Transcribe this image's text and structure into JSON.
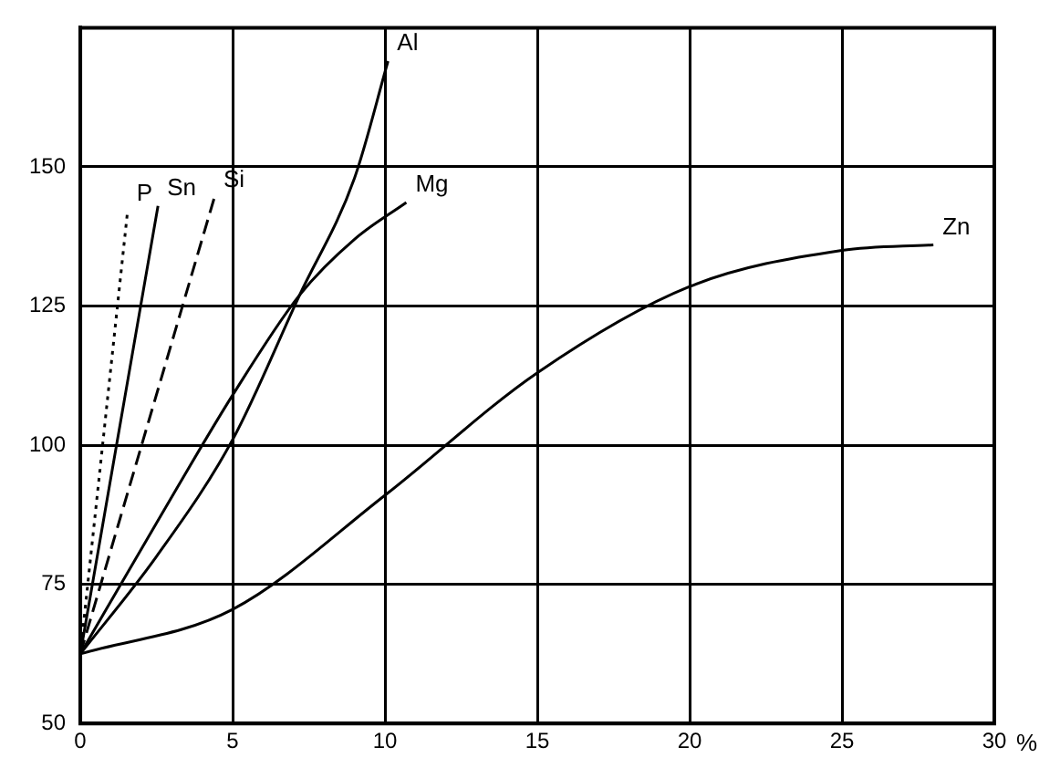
{
  "chart_data": {
    "type": "line",
    "xlabel": "%",
    "xlim": [
      0,
      30
    ],
    "xticks": [
      0,
      5,
      10,
      15,
      20,
      25,
      30
    ],
    "ylim": [
      50,
      175
    ],
    "yticks": [
      50,
      75,
      100,
      125,
      150,
      {
        "value": 175,
        "label": null
      }
    ],
    "grid": true,
    "legend": false,
    "marker": "none",
    "series": [
      {
        "name": "P",
        "color": "#000000",
        "line_style": "dotted",
        "x": [
          0,
          1.55
        ],
        "values": [
          62.5,
          142
        ]
      },
      {
        "name": "Sn",
        "color": "#000000",
        "line_style": "solid",
        "x": [
          0,
          2.55
        ],
        "values": [
          62.5,
          143
        ]
      },
      {
        "name": "Si",
        "color": "#000000",
        "line_style": "dashed",
        "x": [
          0,
          4.4
        ],
        "values": [
          62.5,
          144.5
        ]
      },
      {
        "name": "Al",
        "color": "#000000",
        "line_style": "solid",
        "x": [
          0,
          2.5,
          5,
          7.2,
          9,
          10.1
        ],
        "values": [
          62.5,
          80,
          101,
          127,
          148,
          169
        ]
      },
      {
        "name": "Mg",
        "color": "#000000",
        "line_style": "solid",
        "x": [
          0,
          2.5,
          5,
          7.2,
          9,
          10.7
        ],
        "values": [
          62.5,
          86,
          109,
          127,
          137,
          143.6
        ]
      },
      {
        "name": "Zn",
        "color": "#000000",
        "line_style": "solid",
        "x": [
          0,
          5,
          10,
          15,
          20,
          25,
          28
        ],
        "values": [
          62.5,
          70.5,
          91,
          113,
          128.5,
          135,
          136
        ]
      }
    ]
  }
}
